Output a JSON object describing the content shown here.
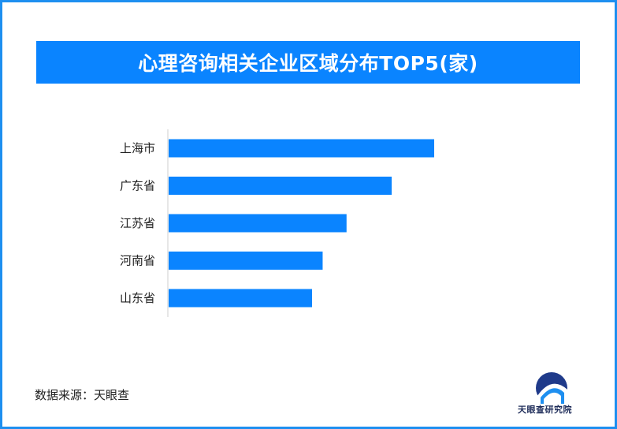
{
  "title": "心理咨询相关企业区域分布TOP5(家)",
  "source": "数据来源：天眼查",
  "logo_text": "天眼查研究院",
  "colors": {
    "frame": "#1e8ff0",
    "banner": "#0a84ff",
    "bar": "#0a84ff",
    "axis": "#cfcfcf"
  },
  "chart_data": {
    "type": "bar",
    "orientation": "horizontal",
    "categories": [
      "上海市",
      "广东省",
      "江苏省",
      "河南省",
      "山东省"
    ],
    "values": [
      100,
      84,
      67,
      58,
      54
    ],
    "title": "心理咨询相关企业区域分布TOP5(家)",
    "xlabel": "",
    "ylabel": "",
    "xlim": [
      0,
      100
    ],
    "grid": false,
    "legend": "none"
  }
}
